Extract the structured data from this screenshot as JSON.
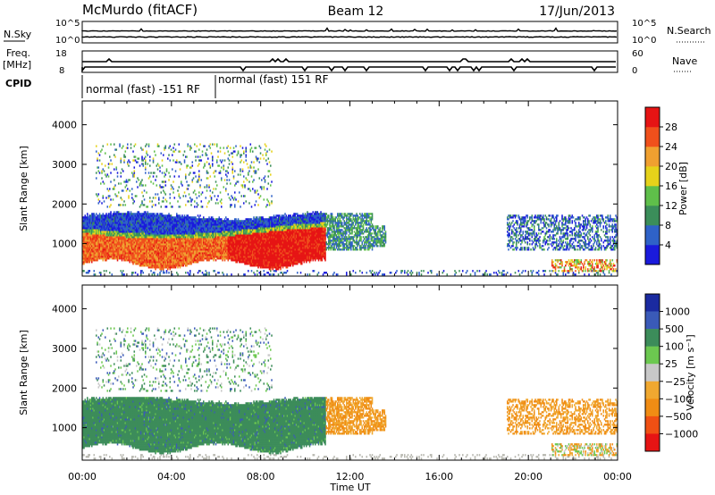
{
  "header": {
    "station": "McMurdo (fitACF)",
    "beam": "Beam 12",
    "date": "17/Jun/2013"
  },
  "params": {
    "nsky_label": "N.Sky",
    "nsearch_label": "N.Search",
    "noise_ticks_left": [
      "10^5",
      "10^0"
    ],
    "noise_ticks_right": [
      "10^5",
      "10^0"
    ],
    "freq_label_top": "Freq.",
    "freq_label_unit": "[MHz]",
    "freq_ticks": [
      "18",
      "8"
    ],
    "nave_label": "Nave",
    "nave_ticks": [
      "60",
      "0"
    ],
    "cpid_label": "CPID",
    "cpid_segments": [
      "normal (fast) -151 RF",
      "normal (fast) 151 RF"
    ]
  },
  "colors": {
    "power": [
      "#1a1adc",
      "#2f62c8",
      "#3b8e5a",
      "#5fbf4a",
      "#e6d21a",
      "#f0a030",
      "#f0501c",
      "#e61414"
    ],
    "velocity": [
      "#1a2aa0",
      "#3a5ab8",
      "#3c8c5a",
      "#6cc850",
      "#c8c8c8",
      "#f0a830",
      "#f08c14",
      "#f05014",
      "#e61414"
    ],
    "scatter_gray": "#b8b8b0"
  },
  "chart_data": [
    {
      "type": "heatmap",
      "title": "",
      "xlabel": "",
      "ylabel": "Slant Range [km]",
      "xlim": [
        0,
        24
      ],
      "ylim": [
        180,
        4600
      ],
      "x_ticks": [
        "00:00",
        "04:00",
        "08:00",
        "12:00",
        "16:00",
        "20:00",
        "00:00"
      ],
      "y_ticks": [
        1000,
        2000,
        3000,
        4000
      ],
      "colorbar_label": "Power [dB]",
      "colorbar_ticks": [
        "4",
        "8",
        "12",
        "16",
        "20",
        "24",
        "28"
      ],
      "colorbar_range": [
        0,
        32
      ],
      "regions": [
        {
          "t0": 0.0,
          "t1": 10.9,
          "r0": 430,
          "r1": 1250,
          "value": "high",
          "note": "dense red/orange echo band"
        },
        {
          "t0": 0.0,
          "t1": 10.9,
          "r0": 1250,
          "r1": 1750,
          "value": "low"
        },
        {
          "t0": 0.6,
          "t1": 8.5,
          "r0": 1900,
          "r1": 3600,
          "value": "mixed"
        },
        {
          "t0": 10.9,
          "t1": 14.3,
          "r0": 800,
          "r1": 1800,
          "value": "mid"
        },
        {
          "t0": 19.0,
          "t1": 24.0,
          "r0": 700,
          "r1": 1750,
          "value": "mid"
        },
        {
          "t0": 21.0,
          "t1": 24.0,
          "r0": 250,
          "r1": 600,
          "value": "mixed"
        }
      ]
    },
    {
      "type": "heatmap",
      "title": "",
      "xlabel": "Time UT",
      "ylabel": "Slant Range [km]",
      "xlim": [
        0,
        24
      ],
      "ylim": [
        180,
        4600
      ],
      "x_ticks": [
        "00:00",
        "04:00",
        "08:00",
        "12:00",
        "16:00",
        "20:00",
        "00:00"
      ],
      "y_ticks": [
        1000,
        2000,
        3000,
        4000
      ],
      "colorbar_label": "Velocity [m s⁻¹]",
      "colorbar_ticks": [
        "1000",
        "500",
        "100",
        "25",
        "−25",
        "−100",
        "−500",
        "−1000"
      ],
      "regions": [
        {
          "t0": 0.0,
          "t1": 10.9,
          "r0": 430,
          "r1": 1750,
          "value": "50 to 300 m/s (green)"
        },
        {
          "t0": 0.6,
          "t1": 8.5,
          "r0": 1900,
          "r1": 3600,
          "value": "mixed"
        },
        {
          "t0": 10.9,
          "t1": 14.3,
          "r0": 800,
          "r1": 1800,
          "value": "-100 to -500 m/s (orange)"
        },
        {
          "t0": 19.0,
          "t1": 24.0,
          "r0": 700,
          "r1": 1750,
          "value": "-100 to -500 m/s (orange)"
        }
      ]
    }
  ]
}
